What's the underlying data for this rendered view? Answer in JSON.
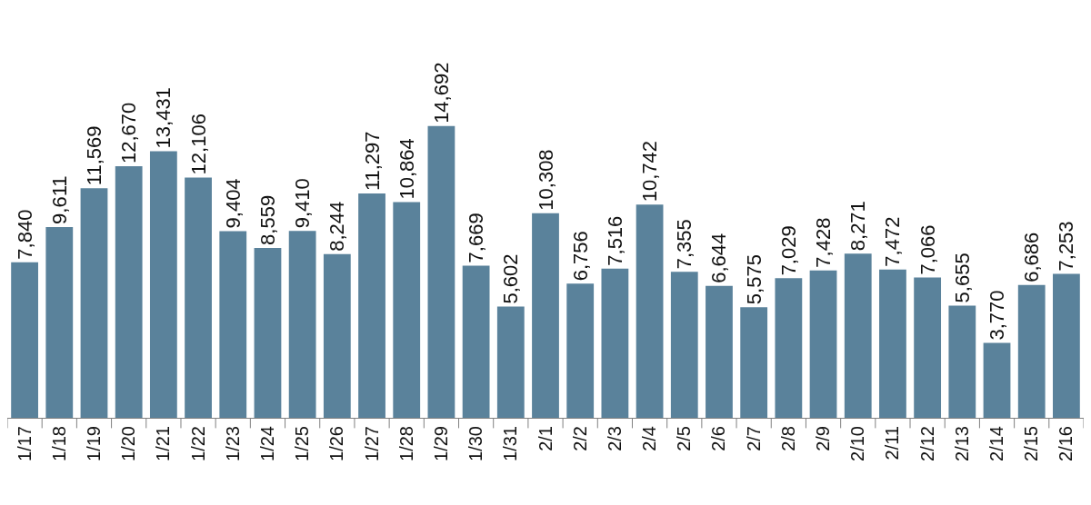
{
  "chart_data": {
    "type": "bar",
    "categories": [
      "1/17",
      "1/18",
      "1/19",
      "1/20",
      "1/21",
      "1/22",
      "1/23",
      "1/24",
      "1/25",
      "1/26",
      "1/27",
      "1/28",
      "1/29",
      "1/30",
      "1/31",
      "2/1",
      "2/2",
      "2/3",
      "2/4",
      "2/5",
      "2/6",
      "2/7",
      "2/8",
      "2/9",
      "2/10",
      "2/11",
      "2/12",
      "2/13",
      "2/14",
      "2/15",
      "2/16"
    ],
    "values": [
      7840,
      9611,
      11569,
      12670,
      13431,
      12106,
      9404,
      8559,
      9410,
      8244,
      11297,
      10864,
      14692,
      7669,
      5602,
      10308,
      6756,
      7516,
      10742,
      7355,
      6644,
      5575,
      7029,
      7428,
      8271,
      7472,
      7066,
      5655,
      3770,
      6686,
      7253
    ],
    "color": "#5a829b",
    "value_labels": [
      "7,840",
      "9,611",
      "11,569",
      "12,670",
      "13,431",
      "12,106",
      "9,404",
      "8,559",
      "9,410",
      "8,244",
      "11,297",
      "10,864",
      "14,692",
      "7,669",
      "5,602",
      "10,308",
      "6,756",
      "7,516",
      "10,742",
      "7,355",
      "6,644",
      "5,575",
      "7,029",
      "7,428",
      "8,271",
      "7,472",
      "7,066",
      "5,655",
      "3,770",
      "6,686",
      "7,253"
    ],
    "tick_labels": "x",
    "legend": false
  }
}
